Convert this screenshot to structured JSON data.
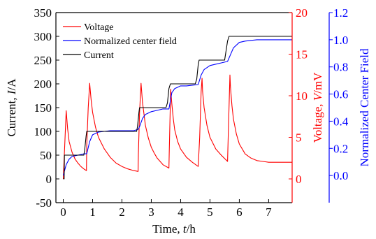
{
  "chart_data": {
    "type": "line",
    "title": "",
    "xlabel": "Time, t/h",
    "xlabel_parts": [
      "Time, ",
      "t",
      "/h"
    ],
    "x_range": [
      -0.25,
      7.8
    ],
    "x_ticks": [
      0,
      1,
      2,
      3,
      4,
      5,
      6,
      7
    ],
    "axes": [
      {
        "id": "left",
        "label": "Current, I/A",
        "label_parts": [
          "Current, ",
          "I",
          "/A"
        ],
        "range": [
          -50,
          350
        ],
        "ticks": [
          -50,
          0,
          50,
          100,
          150,
          200,
          250,
          300,
          350
        ],
        "color": "#000000"
      },
      {
        "id": "right",
        "label": "Voltage, V/mV",
        "label_parts": [
          "Voltage, ",
          "V",
          "/mV"
        ],
        "range": [
          -2.857,
          20
        ],
        "ticks": [
          0,
          5,
          10,
          15,
          20
        ],
        "color": "#ff0000"
      },
      {
        "id": "far-right",
        "label": "Normalized Center Field",
        "label_parts": [
          "Normalized Center Field"
        ],
        "range": [
          -0.2,
          1.2
        ],
        "ticks": [
          0.0,
          0.2,
          0.4,
          0.6,
          0.8,
          1.0,
          1.2
        ],
        "tick_format": 1,
        "color": "#0000ff"
      }
    ],
    "legend": {
      "position": "top-left"
    },
    "series": [
      {
        "name": "Voltage",
        "axis": "right",
        "color": "#ff0000",
        "x": [
          0.0,
          0.05,
          0.1,
          0.15,
          0.2,
          0.3,
          0.4,
          0.5,
          0.6,
          0.7,
          0.79,
          0.8,
          0.85,
          0.9,
          0.95,
          1.0,
          1.1,
          1.2,
          1.4,
          1.6,
          1.8,
          2.0,
          2.2,
          2.4,
          2.55,
          2.56,
          2.6,
          2.65,
          2.7,
          2.8,
          2.9,
          3.0,
          3.1,
          3.2,
          3.4,
          3.6,
          3.61,
          3.66,
          3.7,
          3.75,
          3.8,
          3.9,
          4.0,
          4.2,
          4.4,
          4.6,
          4.65,
          4.7,
          4.73,
          4.75,
          4.8,
          4.9,
          5.0,
          5.2,
          5.4,
          5.6,
          5.62,
          5.68,
          5.7,
          5.75,
          5.8,
          5.9,
          6.0,
          6.2,
          6.4,
          6.6,
          6.8,
          7.0,
          7.2,
          7.5,
          7.8
        ],
        "y": [
          0.0,
          4.0,
          8.2,
          6.0,
          4.5,
          3.2,
          2.4,
          1.9,
          1.5,
          1.2,
          1.0,
          4.0,
          8.5,
          11.5,
          9.5,
          8.0,
          6.2,
          5.0,
          3.6,
          2.6,
          1.9,
          1.5,
          1.2,
          1.0,
          0.9,
          3.0,
          8.0,
          11.5,
          9.2,
          6.4,
          4.9,
          3.8,
          3.1,
          2.5,
          1.7,
          1.3,
          3.0,
          10.8,
          9.0,
          7.2,
          5.9,
          4.5,
          3.6,
          2.6,
          2.0,
          1.5,
          5.0,
          10.5,
          12.1,
          10.5,
          8.6,
          6.4,
          5.0,
          3.6,
          2.8,
          2.1,
          5.0,
          12.5,
          11.0,
          8.8,
          7.2,
          5.4,
          4.2,
          3.0,
          2.5,
          2.2,
          2.1,
          2.0,
          2.0,
          2.0,
          2.0
        ]
      },
      {
        "name": "Normalized center field",
        "axis": "far-right",
        "color": "#0000ff",
        "x": [
          0.0,
          0.1,
          0.2,
          0.3,
          0.5,
          0.7,
          0.8,
          0.9,
          1.0,
          1.2,
          1.4,
          1.6,
          1.8,
          2.0,
          2.2,
          2.4,
          2.55,
          2.6,
          2.7,
          2.8,
          3.0,
          3.2,
          3.4,
          3.6,
          3.65,
          3.7,
          3.8,
          4.0,
          4.2,
          4.4,
          4.6,
          4.7,
          4.8,
          5.0,
          5.2,
          5.4,
          5.6,
          5.7,
          5.8,
          6.0,
          6.2,
          6.4,
          6.6,
          7.0,
          7.4,
          7.8
        ],
        "y": [
          0.0,
          0.08,
          0.12,
          0.14,
          0.15,
          0.16,
          0.16,
          0.25,
          0.3,
          0.32,
          0.325,
          0.33,
          0.33,
          0.33,
          0.33,
          0.33,
          0.34,
          0.36,
          0.42,
          0.45,
          0.47,
          0.48,
          0.49,
          0.49,
          0.55,
          0.61,
          0.64,
          0.66,
          0.66,
          0.665,
          0.67,
          0.74,
          0.78,
          0.81,
          0.82,
          0.83,
          0.84,
          0.89,
          0.94,
          0.98,
          0.99,
          0.995,
          1.0,
          1.0,
          1.0,
          1.0
        ]
      },
      {
        "name": "Current",
        "axis": "left",
        "color": "#000000",
        "x": [
          0.0,
          0.03,
          0.04,
          0.1,
          0.15,
          0.2,
          0.4,
          0.6,
          0.7,
          0.73,
          0.78,
          0.8,
          0.85,
          0.9,
          1.2,
          1.6,
          2.0,
          2.4,
          2.5,
          2.53,
          2.58,
          2.6,
          2.65,
          2.7,
          3.0,
          3.3,
          3.5,
          3.55,
          3.6,
          3.65,
          3.7,
          4.0,
          4.3,
          4.5,
          4.55,
          4.6,
          4.63,
          4.7,
          5.0,
          5.3,
          5.5,
          5.55,
          5.6,
          5.65,
          5.7,
          6.0,
          6.5,
          7.0,
          7.5,
          7.8
        ],
        "y": [
          0,
          0,
          50,
          50,
          50,
          50,
          50,
          50,
          50,
          60,
          90,
          100,
          100,
          100,
          100,
          100,
          100,
          100,
          100,
          110,
          140,
          150,
          150,
          150,
          150,
          150,
          150,
          160,
          190,
          200,
          200,
          200,
          200,
          200,
          210,
          240,
          250,
          250,
          250,
          250,
          250,
          270,
          290,
          300,
          300,
          300,
          300,
          300,
          300,
          300
        ]
      }
    ]
  }
}
